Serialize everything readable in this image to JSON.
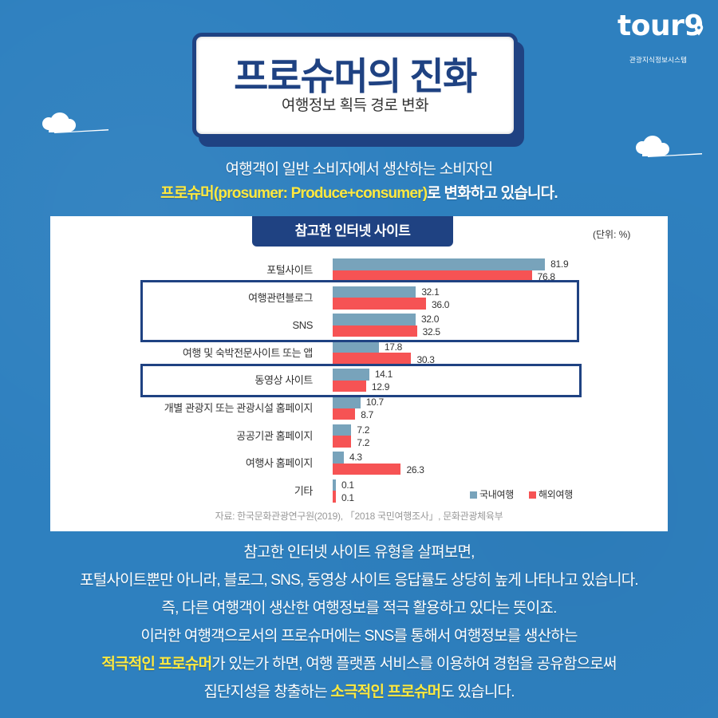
{
  "logo": {
    "brand": "tour9",
    "subtitle": "관광지식정보시스템"
  },
  "title": {
    "main": "프로슈머의 진화",
    "sub": "여행정보 획득 경로 변화"
  },
  "intro": {
    "line1": "여행객이 일반 소비자에서 생산하는 소비자인",
    "line2_highlight": "프로슈머(prosumer: Produce+consumer)",
    "line2_rest": "로 변화하고 있습니다."
  },
  "chart": {
    "header": "참고한 인터넷 사이트",
    "unit": "(단위: %)",
    "legend": [
      {
        "label": "국내여행",
        "color": "#78a3bb"
      },
      {
        "label": "해외여행",
        "color": "#f65354"
      }
    ],
    "source": "자료: 한국문화관광연구원(2019), 「2018 국민여행조사」, 문화관광체육부"
  },
  "chart_data": {
    "type": "bar",
    "orientation": "horizontal",
    "title": "참고한 인터넷 사이트",
    "unit": "%",
    "xlabel": "",
    "ylabel": "",
    "grid": false,
    "legend_position": "bottom-right",
    "categories": [
      "포털사이트",
      "여행관련블로그",
      "SNS",
      "여행 및 숙박전문사이트 또는 앱",
      "동영상 사이트",
      "개별 관광지 또는 관광시설 홈페이지",
      "공공기관 홈페이지",
      "여행사 홈페이지",
      "기타"
    ],
    "series": [
      {
        "name": "국내여행",
        "color": "#78a3bb",
        "values": [
          81.9,
          32.1,
          32.0,
          17.8,
          14.1,
          10.7,
          7.2,
          4.3,
          0.1
        ]
      },
      {
        "name": "해외여행",
        "color": "#f65354",
        "values": [
          76.8,
          36.0,
          32.5,
          30.3,
          12.9,
          8.7,
          7.2,
          26.3,
          0.1
        ]
      }
    ],
    "highlighted_categories": [
      "여행관련블로그",
      "SNS",
      "동영상 사이트"
    ],
    "source": "자료: 한국문화관광연구원(2019), 「2018 국민여행조사」, 문화관광체육부"
  },
  "body": {
    "line1": "참고한 인터넷 사이트 유형을 살펴보면,",
    "line2": "포털사이트뿐만 아니라, 블로그, SNS, 동영상 사이트 응답률도 상당히 높게 나타나고 있습니다.",
    "line3": "즉, 다른 여행객이 생산한 여행정보를 적극 활용하고 있다는 뜻이죠.",
    "line4": "이러한 여행객으로서의 프로슈머에는 SNS를 통해서 여행정보를 생산하는",
    "line5_highlight": "적극적인 프로슈머",
    "line5_rest": "가 있는가 하면, 여행 플랫폼 서비스를 이용하여 경험을 공유함으로써",
    "line6_pre": "집단지성을 창출하는 ",
    "line6_highlight": "소극적인 프로슈머",
    "line6_rest": "도 있습니다."
  },
  "colors": {
    "background": "#2e80bf",
    "navy": "#1f4282",
    "highlight_yellow": "#ffe93f",
    "domestic_bar": "#78a3bb",
    "overseas_bar": "#f65354"
  }
}
